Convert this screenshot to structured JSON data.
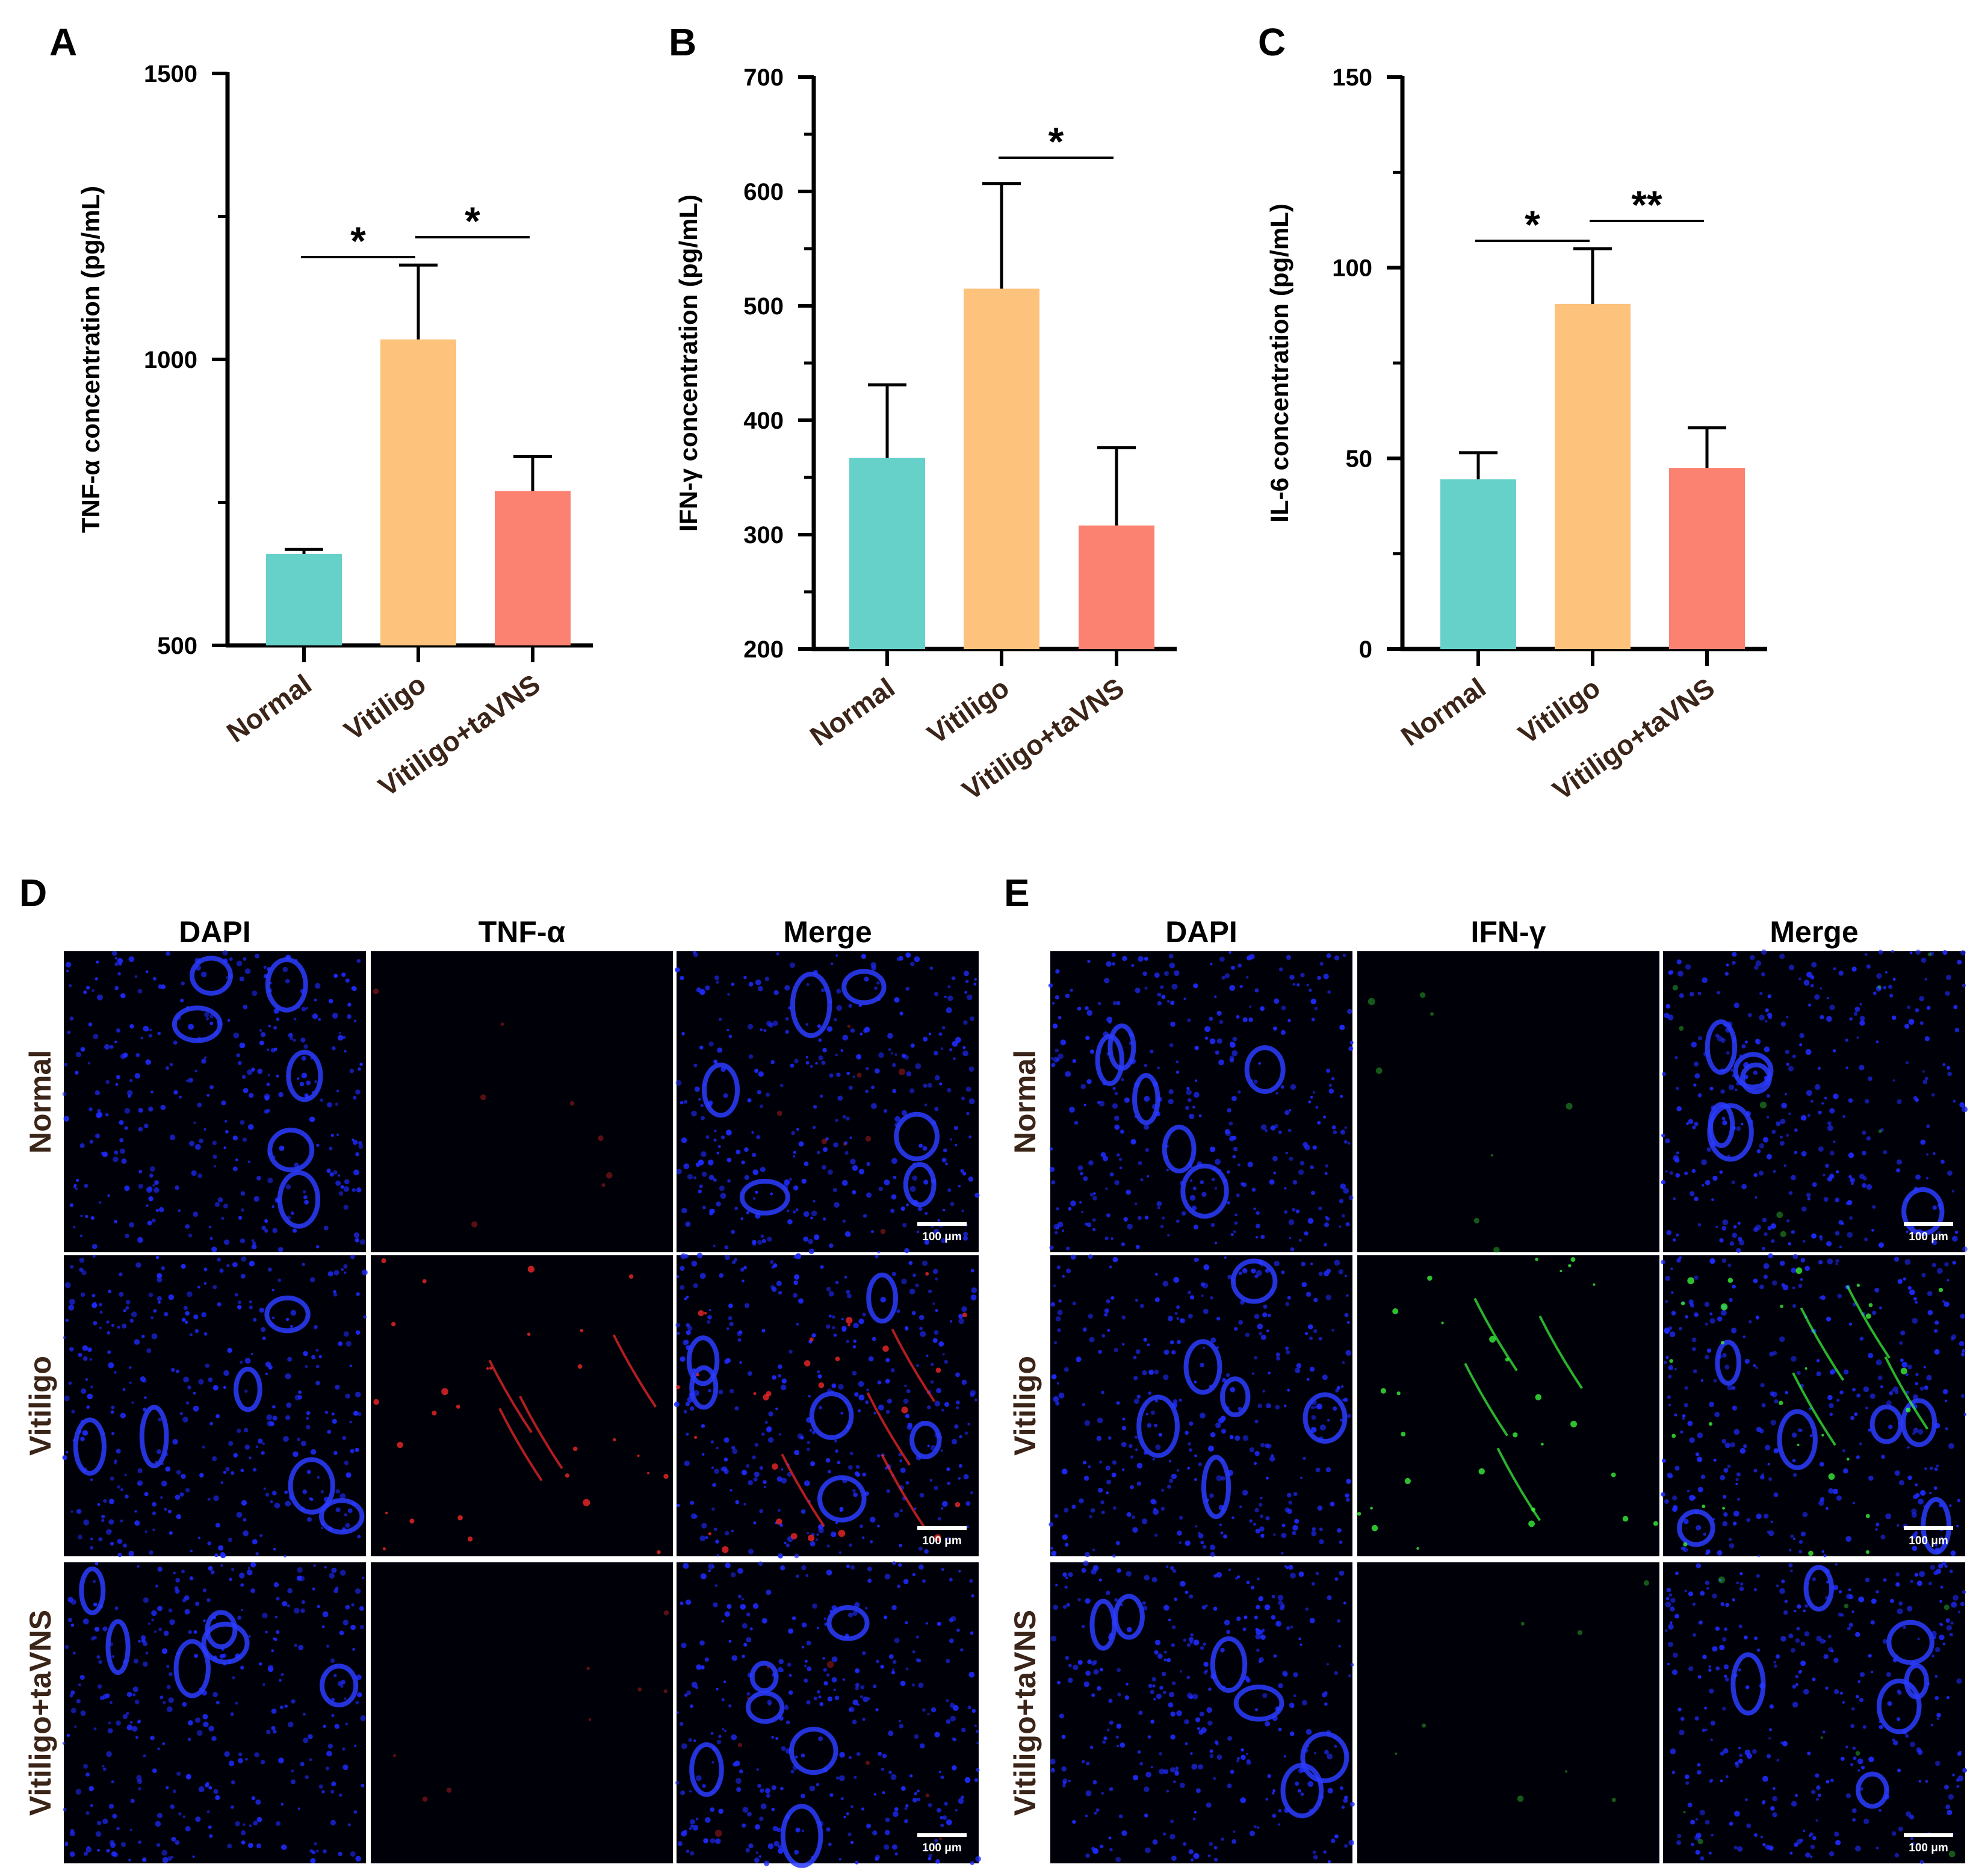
{
  "chart_data": [
    {
      "panel": "A",
      "type": "bar",
      "ylabel": "TNF-α concentration (pg/mL)",
      "ylim": [
        500,
        1500
      ],
      "yticks": [
        500,
        1000,
        1500
      ],
      "categories": [
        "Normal",
        "Vitiligo",
        "Vitiligo+taVNS"
      ],
      "values": [
        660,
        1035,
        770
      ],
      "errors": [
        8,
        130,
        60
      ],
      "colors": [
        "#66d1c9",
        "#fdc27c",
        "#fb8271"
      ],
      "significance": [
        {
          "from": 0,
          "to": 1,
          "label": "*"
        },
        {
          "from": 1,
          "to": 2,
          "label": "*"
        }
      ]
    },
    {
      "panel": "B",
      "type": "bar",
      "ylabel": "IFN-γ concentration (pg/mL)",
      "ylim": [
        200,
        700
      ],
      "yticks": [
        200,
        300,
        400,
        500,
        600,
        700
      ],
      "categories": [
        "Normal",
        "Vitiligo",
        "Vitiligo+taVNS"
      ],
      "values": [
        367,
        515,
        308
      ],
      "errors": [
        64,
        92,
        68
      ],
      "colors": [
        "#66d1c9",
        "#fdc27c",
        "#fb8271"
      ],
      "significance": [
        {
          "from": 1,
          "to": 2,
          "label": "*"
        }
      ]
    },
    {
      "panel": "C",
      "type": "bar",
      "ylabel": "IL-6 concentration (pg/mL)",
      "ylim": [
        0,
        150
      ],
      "yticks": [
        0,
        50,
        100,
        150
      ],
      "categories": [
        "Normal",
        "Vitiligo",
        "Vitiligo+taVNS"
      ],
      "values": [
        44.5,
        90.5,
        47.5
      ],
      "errors": [
        7,
        14.5,
        10.5
      ],
      "colors": [
        "#66d1c9",
        "#fdc27c",
        "#fb8271"
      ],
      "significance": [
        {
          "from": 0,
          "to": 1,
          "label": "*"
        },
        {
          "from": 1,
          "to": 2,
          "label": "**"
        }
      ]
    }
  ],
  "micrographs": [
    {
      "panel": "D",
      "columns": [
        "DAPI",
        "TNF-α",
        "Merge"
      ],
      "rows": [
        "Normal",
        "Vitiligo",
        "Vitiligo+taVNS"
      ],
      "scale_bar": "100 μm",
      "stain_color": "#ff2a2a"
    },
    {
      "panel": "E",
      "columns": [
        "DAPI",
        "IFN-γ",
        "Merge"
      ],
      "rows": [
        "Normal",
        "Vitiligo",
        "Vitiligo+taVNS"
      ],
      "scale_bar": "100 μm",
      "stain_color": "#3cff3c"
    }
  ]
}
